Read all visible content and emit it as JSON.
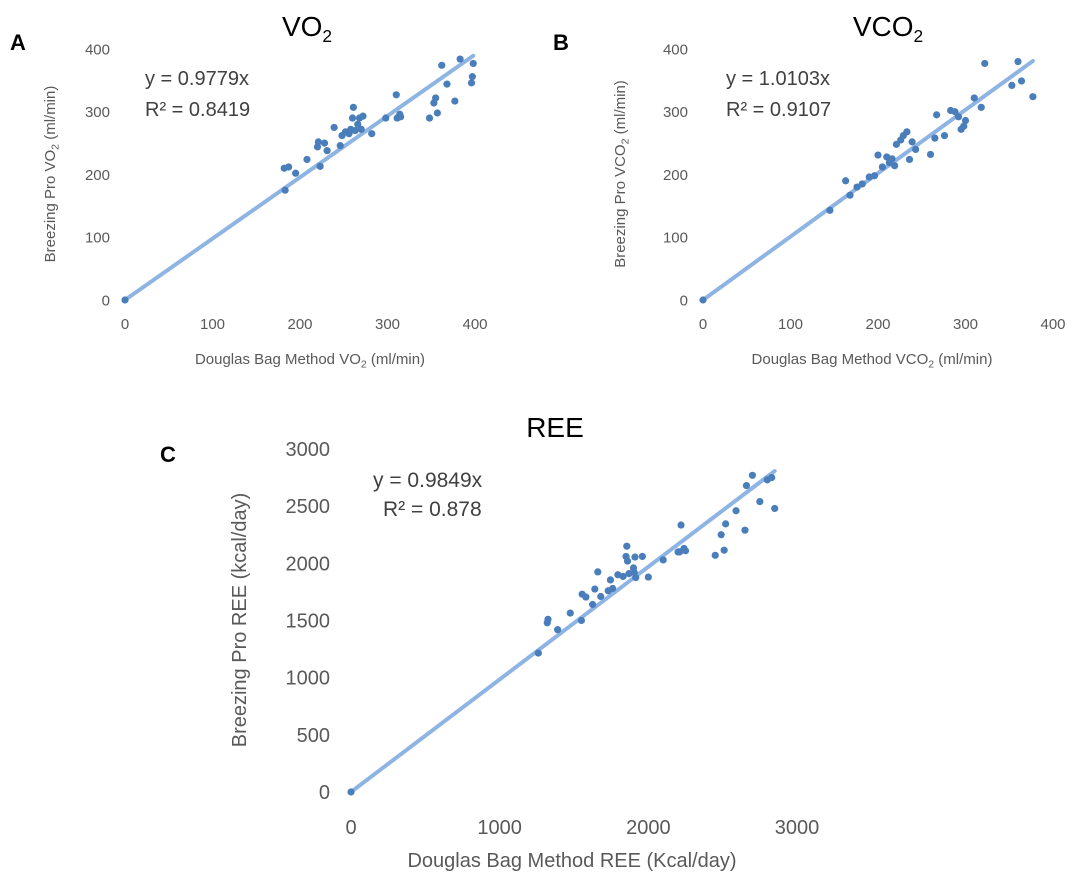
{
  "chart_data": [
    {
      "panel": "A",
      "type": "scatter",
      "title": "VO",
      "title_sub": "2",
      "xlabel": "Douglas Bag Method VO",
      "xlabel_sub": "2",
      "xlabel_suffix": " (ml/min)",
      "ylabel": "Breezing Pro VO",
      "ylabel_sub": "2",
      "ylabel_suffix": " (ml/min)",
      "xlim": [
        0,
        400
      ],
      "ylim": [
        0,
        400
      ],
      "xticks": [
        0,
        100,
        200,
        300,
        400
      ],
      "yticks": [
        0,
        100,
        200,
        300,
        400
      ],
      "grid": false,
      "point_color": "#4a7ebb",
      "trendline_color": "#8eb4e3",
      "trendline_slope": 0.9779,
      "equation": "y = 0.9779x",
      "r_squared": "R² = 0.8419",
      "points": [
        [
          0,
          0
        ],
        [
          183,
          175
        ],
        [
          182,
          210
        ],
        [
          187,
          212
        ],
        [
          195,
          202
        ],
        [
          208,
          224
        ],
        [
          220,
          244
        ],
        [
          221,
          252
        ],
        [
          223,
          213
        ],
        [
          228,
          250
        ],
        [
          231,
          238
        ],
        [
          239,
          275
        ],
        [
          246,
          246
        ],
        [
          248,
          262
        ],
        [
          252,
          268
        ],
        [
          256,
          265
        ],
        [
          258,
          272
        ],
        [
          260,
          290
        ],
        [
          261,
          307
        ],
        [
          263,
          270
        ],
        [
          266,
          280
        ],
        [
          268,
          290
        ],
        [
          270,
          272
        ],
        [
          272,
          293
        ],
        [
          282,
          265
        ],
        [
          298,
          290
        ],
        [
          310,
          327
        ],
        [
          311,
          290
        ],
        [
          314,
          296
        ],
        [
          315,
          292
        ],
        [
          348,
          290
        ],
        [
          353,
          314
        ],
        [
          355,
          322
        ],
        [
          357,
          298
        ],
        [
          362,
          374
        ],
        [
          368,
          344
        ],
        [
          377,
          317
        ],
        [
          383,
          384
        ],
        [
          396,
          346
        ],
        [
          397,
          356
        ],
        [
          398,
          377
        ]
      ]
    },
    {
      "panel": "B",
      "type": "scatter",
      "title": "VCO",
      "title_sub": "2",
      "xlabel": "Douglas Bag Method VCO",
      "xlabel_sub": "2",
      "xlabel_suffix": " (ml/min)",
      "ylabel": "Breezing Pro VCO",
      "ylabel_sub": "2",
      "ylabel_suffix": " (ml/min)",
      "xlim": [
        0,
        400
      ],
      "ylim": [
        0,
        400
      ],
      "xticks": [
        0,
        100,
        200,
        300,
        400
      ],
      "yticks": [
        0,
        100,
        200,
        300,
        400
      ],
      "grid": false,
      "point_color": "#4a7ebb",
      "trendline_color": "#8eb4e3",
      "trendline_slope": 1.0103,
      "equation": "y = 1.0103x",
      "r_squared": "R² = 0.9107",
      "points": [
        [
          0,
          0
        ],
        [
          145,
          143
        ],
        [
          163,
          190
        ],
        [
          168,
          167
        ],
        [
          176,
          180
        ],
        [
          182,
          185
        ],
        [
          190,
          196
        ],
        [
          196,
          198
        ],
        [
          200,
          231
        ],
        [
          205,
          212
        ],
        [
          210,
          228
        ],
        [
          213,
          219
        ],
        [
          216,
          225
        ],
        [
          219,
          214
        ],
        [
          221,
          248
        ],
        [
          226,
          255
        ],
        [
          229,
          262
        ],
        [
          233,
          268
        ],
        [
          236,
          224
        ],
        [
          239,
          252
        ],
        [
          243,
          240
        ],
        [
          260,
          232
        ],
        [
          265,
          258
        ],
        [
          267,
          295
        ],
        [
          276,
          262
        ],
        [
          283,
          302
        ],
        [
          288,
          300
        ],
        [
          292,
          292
        ],
        [
          295,
          272
        ],
        [
          298,
          277
        ],
        [
          300,
          286
        ],
        [
          310,
          322
        ],
        [
          318,
          307
        ],
        [
          322,
          377
        ],
        [
          353,
          342
        ],
        [
          360,
          380
        ],
        [
          364,
          349
        ],
        [
          377,
          324
        ]
      ]
    },
    {
      "panel": "C",
      "type": "scatter",
      "title": "REE",
      "xlabel": "Douglas Bag Method REE  (Kcal/day)",
      "ylabel": "Breezing Pro REE  (kcal/day)",
      "xlim": [
        0,
        3000
      ],
      "ylim": [
        0,
        3000
      ],
      "xticks": [
        0,
        1000,
        2000,
        3000
      ],
      "yticks": [
        0,
        500,
        1000,
        1500,
        2000,
        2500,
        3000
      ],
      "grid": false,
      "point_color": "#4a7ebb",
      "trendline_color": "#8eb4e3",
      "trendline_slope": 0.9849,
      "equation": "y = 0.9849x",
      "r_squared": "R² = 0.878",
      "points": [
        [
          0,
          0
        ],
        [
          1260,
          1215
        ],
        [
          1320,
          1480
        ],
        [
          1325,
          1510
        ],
        [
          1390,
          1420
        ],
        [
          1475,
          1565
        ],
        [
          1550,
          1500
        ],
        [
          1555,
          1730
        ],
        [
          1580,
          1705
        ],
        [
          1625,
          1640
        ],
        [
          1640,
          1775
        ],
        [
          1660,
          1925
        ],
        [
          1680,
          1710
        ],
        [
          1730,
          1760
        ],
        [
          1745,
          1855
        ],
        [
          1760,
          1780
        ],
        [
          1795,
          1900
        ],
        [
          1830,
          1885
        ],
        [
          1850,
          2060
        ],
        [
          1855,
          2150
        ],
        [
          1860,
          2020
        ],
        [
          1870,
          1910
        ],
        [
          1900,
          1960
        ],
        [
          1905,
          1920
        ],
        [
          1910,
          2055
        ],
        [
          1915,
          1875
        ],
        [
          1960,
          2060
        ],
        [
          2000,
          1880
        ],
        [
          2100,
          2030
        ],
        [
          2200,
          2100
        ],
        [
          2210,
          2100
        ],
        [
          2220,
          2335
        ],
        [
          2240,
          2130
        ],
        [
          2250,
          2110
        ],
        [
          2450,
          2070
        ],
        [
          2490,
          2250
        ],
        [
          2510,
          2115
        ],
        [
          2520,
          2345
        ],
        [
          2590,
          2460
        ],
        [
          2650,
          2290
        ],
        [
          2660,
          2680
        ],
        [
          2700,
          2770
        ],
        [
          2750,
          2540
        ],
        [
          2800,
          2730
        ],
        [
          2830,
          2750
        ],
        [
          2850,
          2480
        ]
      ]
    }
  ]
}
